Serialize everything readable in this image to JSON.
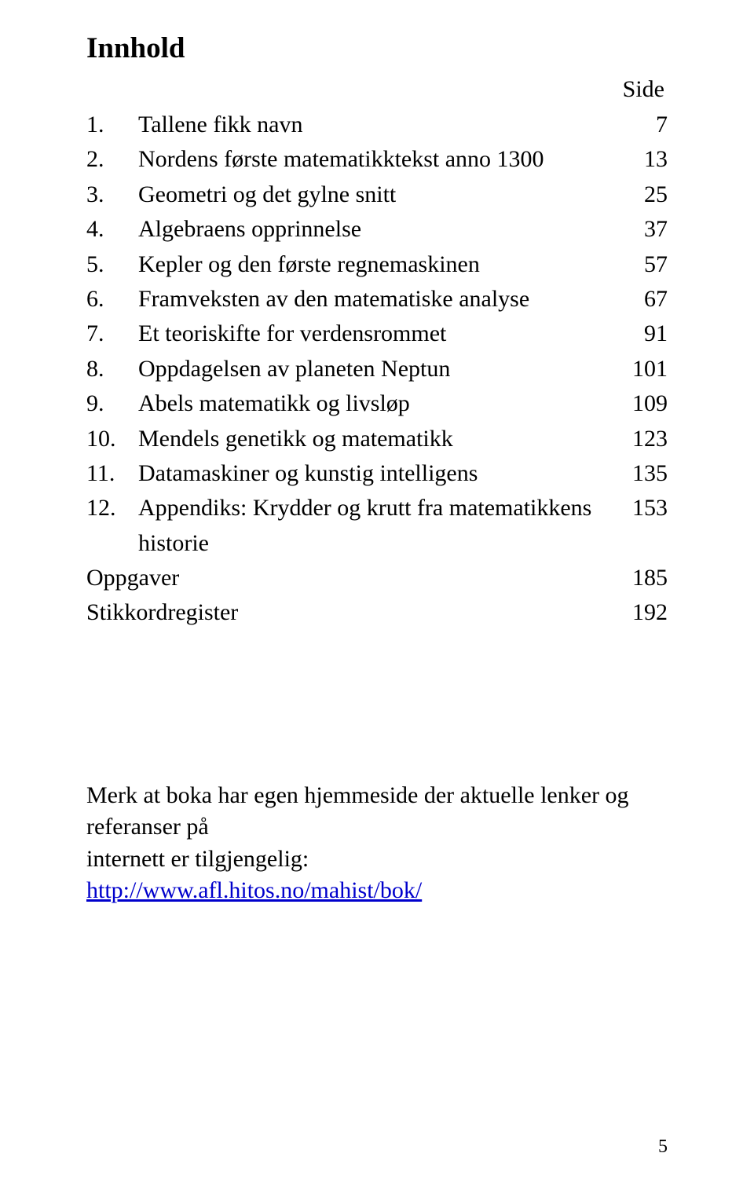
{
  "title": "Innhold",
  "side_header": "Side",
  "toc_items": [
    {
      "num": "1.",
      "label": "Tallene fikk navn",
      "page": "7"
    },
    {
      "num": "2.",
      "label": "Nordens første matematikktekst anno 1300",
      "page": "13"
    },
    {
      "num": "3.",
      "label": "Geometri og det gylne snitt",
      "page": "25"
    },
    {
      "num": "4.",
      "label": "Algebraens opprinnelse",
      "page": "37"
    },
    {
      "num": "5.",
      "label": "Kepler og den første regnemaskinen",
      "page": "57"
    },
    {
      "num": "6.",
      "label": "Framveksten av den matematiske analyse",
      "page": "67"
    },
    {
      "num": "7.",
      "label": "Et teoriskifte for verdensrommet",
      "page": "91"
    },
    {
      "num": "8.",
      "label": "Oppdagelsen av planeten Neptun",
      "page": "101"
    },
    {
      "num": "9.",
      "label": "Abels matematikk og livsløp",
      "page": "109"
    },
    {
      "num": "10.",
      "label": "Mendels genetikk og matematikk",
      "page": "123"
    },
    {
      "num": "11.",
      "label": "Datamaskiner og kunstig intelligens",
      "page": "135"
    },
    {
      "num": "12.",
      "label": "Appendiks: Krydder og krutt fra matematikkens historie",
      "page": "153"
    }
  ],
  "toc_tail": [
    {
      "label": "Oppgaver",
      "page": "185"
    },
    {
      "label": "Stikkordregister",
      "page": "192"
    }
  ],
  "note_line1": "Merk at boka har egen hjemmeside der aktuelle lenker og referanser på",
  "note_line2": "internett er tilgjengelig:",
  "note_link": "http://www.afl.hitos.no/mahist/bok/",
  "footer_page": "5",
  "colors": {
    "text": "#000000",
    "background": "#ffffff",
    "link": "#0000cc"
  },
  "typography": {
    "family": "Times New Roman",
    "title_size_pt": 28,
    "body_size_pt": 22,
    "footer_size_pt": 18
  }
}
